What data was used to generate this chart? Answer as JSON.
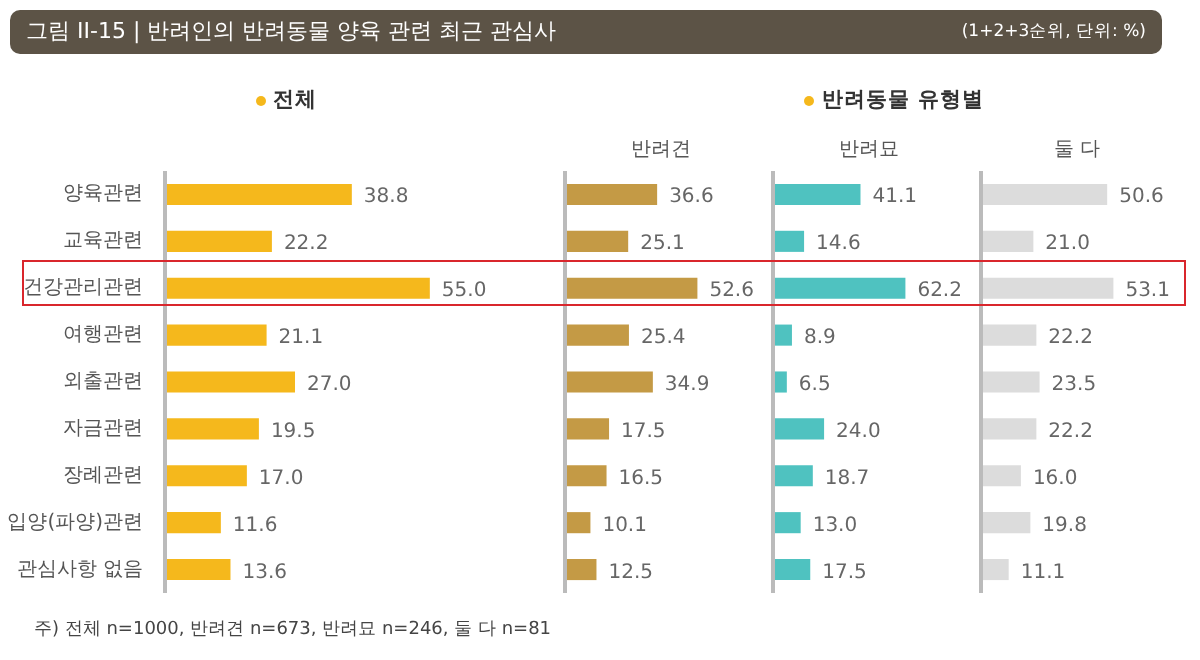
{
  "chart_data": [
    {
      "type": "bar",
      "orientation": "horizontal",
      "title": "그림 II-15 | 반려인의 반려동물 양육 관련 최근 관심사",
      "annotations": [
        "전체",
        "주) 전체 n=1000, 반려견 n=673, 반려묘 n=246, 둘 다 n=81"
      ],
      "categories": [
        "양육관련",
        "교육관련",
        "건강관리관련",
        "여행관련",
        "외출관련",
        "자금관련",
        "장례관련",
        "입양(파양)관련",
        "관심사항 없음"
      ],
      "values": [
        38.8,
        22.2,
        55.0,
        21.1,
        27.0,
        19.5,
        17.0,
        11.6,
        13.6
      ],
      "color": "#f5b81c",
      "value_labels": [
        "38.8",
        "22.2",
        "55.0",
        "21.1",
        "27.0",
        "19.5",
        "17.0",
        "11.6",
        "13.6"
      ],
      "tick_labels": "y"
    },
    {
      "type": "bar",
      "orientation": "horizontal",
      "title": "반려견",
      "annotations": [
        "반려동물 유형별"
      ],
      "values": [
        36.6,
        25.1,
        52.6,
        25.4,
        34.9,
        17.5,
        16.5,
        10.1,
        12.5
      ],
      "color": "#c49a45",
      "value_labels": [
        "36.6",
        "25.1",
        "52.6",
        "25.4",
        "34.9",
        "17.5",
        "16.5",
        "10.1",
        "12.5"
      ],
      "tick_labels": false
    },
    {
      "type": "bar",
      "orientation": "horizontal",
      "title": "반려묘",
      "values": [
        41.1,
        14.6,
        62.2,
        8.9,
        6.5,
        24.0,
        18.7,
        13.0,
        17.5
      ],
      "color": "#4fc2c0",
      "value_labels": [
        "41.1",
        "14.6",
        "62.2",
        "8.9",
        "6.5",
        "24.0",
        "18.7",
        "13.0",
        "17.5"
      ],
      "tick_labels": false
    },
    {
      "type": "bar",
      "orientation": "horizontal",
      "title": "둘 다",
      "annotations": [
        "(1+2+3순위, 단위: %)"
      ],
      "values": [
        50.6,
        21.0,
        53.1,
        22.2,
        23.5,
        22.2,
        16.0,
        19.8,
        11.1
      ],
      "color": "#dcdcdc",
      "value_labels": [
        "50.6",
        "21.0",
        "53.1",
        "22.2",
        "23.5",
        "22.2",
        "16.0",
        "19.8",
        "11.1"
      ],
      "tick_labels": false
    }
  ]
}
